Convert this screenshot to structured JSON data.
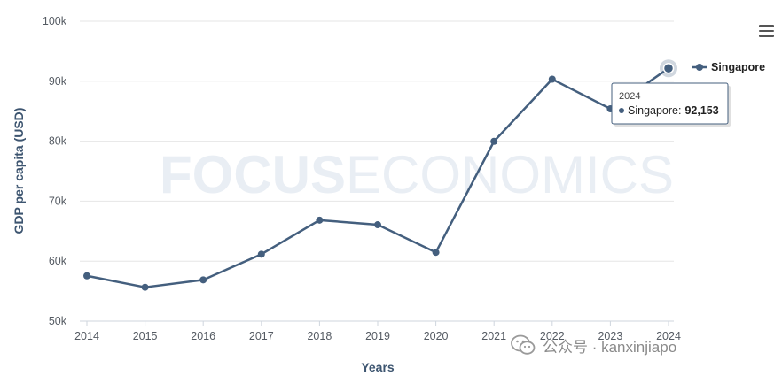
{
  "chart_data": {
    "type": "line",
    "title": "",
    "xlabel": "Years",
    "ylabel": "GDP per capita (USD)",
    "x": [
      "2014",
      "2015",
      "2016",
      "2017",
      "2018",
      "2019",
      "2020",
      "2021",
      "2022",
      "2023",
      "2024"
    ],
    "series": [
      {
        "name": "Singapore",
        "values": [
          57560,
          55650,
          56880,
          61160,
          66840,
          66070,
          61470,
          79980,
          90340,
          85400,
          92153
        ]
      }
    ],
    "ylim": [
      50000,
      100000
    ],
    "yticks": [
      50000,
      60000,
      70000,
      80000,
      90000,
      100000
    ],
    "ytick_labels": [
      "50k",
      "60k",
      "70k",
      "80k",
      "90k",
      "100k"
    ],
    "grid": "horizontal",
    "legend": "top-right",
    "colors": {
      "series": "#445f7e",
      "grid": "#e6e6e6",
      "axis_label": "#3d5570"
    }
  },
  "watermark": {
    "bold": "FOCUS",
    "light": "ECONOMICS"
  },
  "tooltip": {
    "year": "2024",
    "series": "Singapore:",
    "value": "92,153"
  },
  "menu_icon": "hamburger-menu-icon",
  "source": {
    "icon": "wechat-icon",
    "text": "公众号 · kanxinjiapo"
  }
}
